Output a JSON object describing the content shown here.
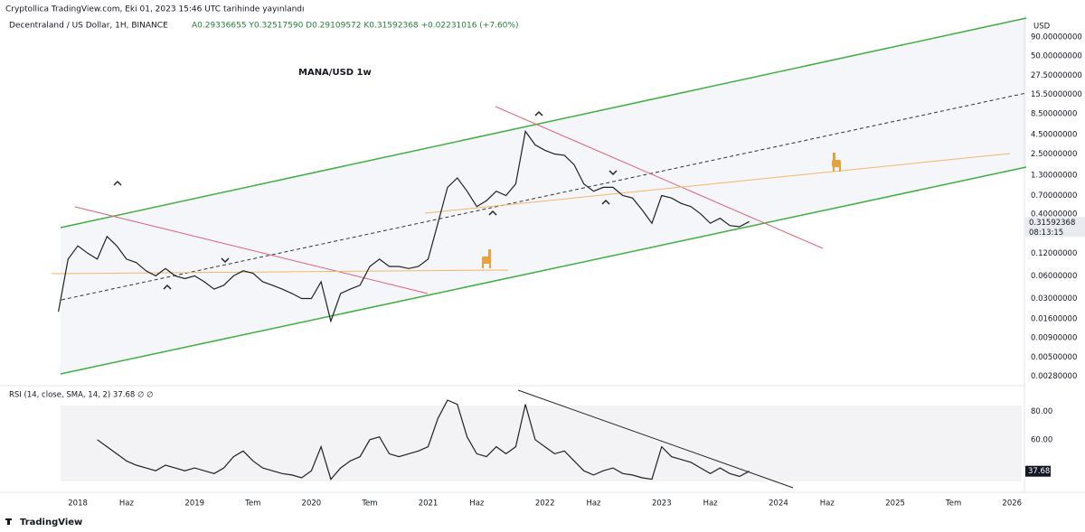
{
  "header": {
    "published": "Cryptollica TradingView.com, Eki 01, 2023 15:46 UTC tarihinde yayınlandı",
    "symbol": "Decentraland / US Dollar, 1H, BINANCE",
    "ohlc": "A0.29336655 Y0.32517590 D0.29109572 K0.31592368 +0.02231016 (+7.60%)"
  },
  "footer": {
    "brand": "TradingView"
  },
  "chart_data": [
    {
      "type": "line",
      "title": "MANA/USD 1w",
      "y_unit": "USD",
      "log_scale": true,
      "grid": false,
      "color": "#222222",
      "countdown": "08:13:15",
      "x": [
        "2017-11",
        "2017-12",
        "2018-01",
        "2018-02",
        "2018-03",
        "2018-04",
        "2018-05",
        "2018-06",
        "2018-07",
        "2018-08",
        "2018-09",
        "2018-10",
        "2018-11",
        "2018-12",
        "2019-01",
        "2019-02",
        "2019-03",
        "2019-04",
        "2019-05",
        "2019-06",
        "2019-07",
        "2019-08",
        "2019-09",
        "2019-10",
        "2019-11",
        "2019-12",
        "2020-01",
        "2020-02",
        "2020-03",
        "2020-04",
        "2020-05",
        "2020-06",
        "2020-07",
        "2020-08",
        "2020-09",
        "2020-10",
        "2020-11",
        "2020-12",
        "2021-01",
        "2021-02",
        "2021-03",
        "2021-04",
        "2021-05",
        "2021-06",
        "2021-07",
        "2021-08",
        "2021-09",
        "2021-10",
        "2021-11",
        "2021-12",
        "2022-01",
        "2022-02",
        "2022-03",
        "2022-04",
        "2022-05",
        "2022-06",
        "2022-07",
        "2022-08",
        "2022-09",
        "2022-10",
        "2022-11",
        "2022-12",
        "2023-01",
        "2023-02",
        "2023-03",
        "2023-04",
        "2023-05",
        "2023-06",
        "2023-07",
        "2023-08",
        "2023-09",
        "2023-10"
      ],
      "series": [
        {
          "name": "MANA/USD",
          "color": "#222222",
          "values": [
            0.02,
            0.1,
            0.15,
            0.12,
            0.1,
            0.2,
            0.15,
            0.1,
            0.09,
            0.07,
            0.06,
            0.075,
            0.06,
            0.055,
            0.06,
            0.05,
            0.04,
            0.045,
            0.06,
            0.07,
            0.065,
            0.05,
            0.045,
            0.04,
            0.035,
            0.03,
            0.03,
            0.05,
            0.015,
            0.035,
            0.04,
            0.045,
            0.08,
            0.1,
            0.08,
            0.08,
            0.075,
            0.08,
            0.1,
            0.3,
            0.9,
            1.2,
            0.8,
            0.5,
            0.6,
            0.8,
            0.7,
            1.0,
            5.0,
            3.3,
            2.8,
            2.5,
            2.4,
            1.8,
            1.0,
            0.8,
            0.9,
            0.9,
            0.7,
            0.65,
            0.45,
            0.3,
            0.7,
            0.65,
            0.55,
            0.5,
            0.4,
            0.3,
            0.35,
            0.28,
            0.27,
            0.31592368
          ]
        }
      ],
      "xlim": [
        "2017-05",
        "2026-02"
      ],
      "xticks": [
        {
          "value": "2018-01",
          "label": "2018"
        },
        {
          "value": "2018-06",
          "label": "Haz"
        },
        {
          "value": "2019-01",
          "label": "2019"
        },
        {
          "value": "2019-07",
          "label": "Tem"
        },
        {
          "value": "2020-01",
          "label": "2020"
        },
        {
          "value": "2020-07",
          "label": "Tem"
        },
        {
          "value": "2021-01",
          "label": "2021"
        },
        {
          "value": "2021-06",
          "label": "Haz"
        },
        {
          "value": "2022-01",
          "label": "2022"
        },
        {
          "value": "2022-06",
          "label": "Haz"
        },
        {
          "value": "2023-01",
          "label": "2023"
        },
        {
          "value": "2023-06",
          "label": "Haz"
        },
        {
          "value": "2024-01",
          "label": "2024"
        },
        {
          "value": "2024-06",
          "label": "Haz"
        },
        {
          "value": "2025-01",
          "label": "2025"
        },
        {
          "value": "2025-07",
          "label": "Tem"
        },
        {
          "value": "2026-01",
          "label": "2026"
        }
      ],
      "ylim": [
        0.0022,
        160
      ],
      "yticks": [
        {
          "value": 0.0028,
          "label": "0.00280000"
        },
        {
          "value": 0.005,
          "label": "0.00500000"
        },
        {
          "value": 0.009,
          "label": "0.00900000"
        },
        {
          "value": 0.016,
          "label": "0.01600000"
        },
        {
          "value": 0.03,
          "label": "0.03000000"
        },
        {
          "value": 0.06,
          "label": "0.06000000"
        },
        {
          "value": 0.12,
          "label": "0.12000000"
        },
        {
          "value": 0.4,
          "label": "0.40000000"
        },
        {
          "value": 0.7,
          "label": "0.70000000"
        },
        {
          "value": 1.3,
          "label": "1.30000000"
        },
        {
          "value": 2.5,
          "label": "2.50000000"
        },
        {
          "value": 4.5,
          "label": "4.50000000"
        },
        {
          "value": 8.5,
          "label": "8.50000000"
        },
        {
          "value": 15.5,
          "label": "15.50000000"
        },
        {
          "value": 27.5,
          "label": "27.50000000"
        },
        {
          "value": 50,
          "label": "50.00000000"
        },
        {
          "value": 90,
          "label": "90.00000000"
        }
      ]
    },
    {
      "type": "line",
      "title": "RSI (14, close, SMA, 14, 2)  37.68  ∅  ∅",
      "color": "#222222",
      "series": [
        {
          "name": "RSI",
          "color": "#222222",
          "values": [
            null,
            null,
            null,
            null,
            60,
            55,
            50,
            45,
            42,
            40,
            38,
            42,
            40,
            38,
            40,
            38,
            36,
            40,
            48,
            52,
            45,
            40,
            38,
            36,
            35,
            33,
            38,
            55,
            32,
            40,
            45,
            48,
            60,
            62,
            50,
            48,
            50,
            52,
            55,
            75,
            88,
            85,
            62,
            50,
            48,
            55,
            50,
            55,
            85,
            60,
            55,
            50,
            52,
            45,
            38,
            35,
            38,
            40,
            36,
            35,
            33,
            32,
            55,
            48,
            46,
            44,
            40,
            36,
            40,
            36,
            34,
            37.68
          ],
          "value_labels": [
            null,
            null,
            null,
            null,
            null,
            null,
            null,
            null,
            null,
            null,
            null,
            null,
            null,
            null,
            null,
            null,
            null,
            null,
            null,
            null,
            null,
            null,
            null,
            null,
            null,
            null,
            null,
            null,
            null,
            null,
            null,
            null,
            null,
            null,
            null,
            null,
            null,
            null,
            null,
            null,
            null,
            null,
            null,
            null,
            null,
            null,
            null,
            null,
            null,
            null,
            null,
            null,
            null,
            null,
            null,
            null,
            null,
            null,
            null,
            null,
            null,
            null,
            null,
            null,
            null,
            null,
            null,
            null,
            null,
            null,
            null,
            "37.68"
          ]
        }
      ],
      "ylim": [
        26,
        95
      ],
      "yticks": [
        {
          "value": 60,
          "label": "60.00"
        },
        {
          "value": 80,
          "label": "80.00"
        }
      ]
    }
  ]
}
